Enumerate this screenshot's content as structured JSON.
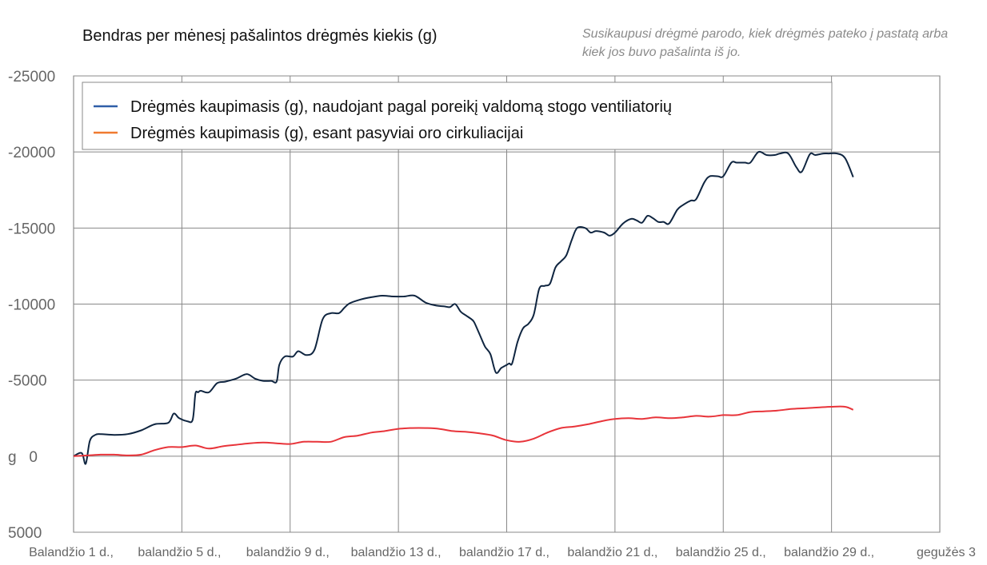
{
  "chart_data": {
    "type": "line",
    "title": "Bendras per mėnesį pašalintos drėgmės kiekis (g)",
    "subtitle": "Susikaupusi drėgmė parodo, kiek drėgmės pateko į pastatą arba kiek jos buvo pašalinta iš jo.",
    "ylim": [
      5000,
      -25000
    ],
    "y_ticks": [
      -25000,
      -20000,
      -15000,
      -10000,
      -5000,
      0,
      5000
    ],
    "y_tick_labels": [
      "-25000",
      "-20000",
      "-15000",
      "-10000",
      "-5000",
      "g   0",
      "5000"
    ],
    "x_ticks": [
      1,
      5,
      9,
      13,
      17,
      21,
      25,
      29,
      33
    ],
    "x_tick_labels": [
      "Balandžio 1 d.,",
      "balandžio 5 d.,",
      "balandžio 9 d.,",
      "balandžio 13 d.,",
      "balandžio 17 d.,",
      "balandžio 21 d.,",
      "balandžio 25 d.,",
      "balandžio 29 d.,",
      "gegužės 3"
    ],
    "xlim": [
      1,
      33
    ],
    "grid": true,
    "legend_position": "top-left",
    "series": [
      {
        "name": "Drėgmės kaupimasis (g), naudojant pagal poreikį valdomą stogo ventiliatorių",
        "color": "#0f2540",
        "legend_color": "#2f5ea8",
        "x": [
          1,
          1.3,
          1.45,
          1.6,
          1.8,
          2.0,
          2.5,
          3.0,
          3.5,
          4.0,
          4.5,
          4.7,
          4.9,
          5.2,
          5.4,
          5.5,
          5.6,
          5.7,
          6.0,
          6.3,
          6.6,
          7.0,
          7.4,
          7.7,
          8.0,
          8.3,
          8.5,
          8.6,
          8.8,
          9.1,
          9.3,
          9.6,
          9.9,
          10.2,
          10.5,
          10.8,
          11.0,
          11.2,
          11.6,
          12.0,
          12.4,
          12.8,
          13.2,
          13.6,
          14.0,
          14.4,
          14.7,
          14.9,
          15.1,
          15.3,
          15.5,
          15.7,
          15.8,
          16.0,
          16.2,
          16.4,
          16.6,
          16.8,
          17.0,
          17.1,
          17.2,
          17.4,
          17.6,
          17.8,
          18.0,
          18.2,
          18.4,
          18.6,
          18.8,
          19.0,
          19.2,
          19.4,
          19.6,
          19.9,
          20.1,
          20.3,
          20.6,
          20.8,
          21.0,
          21.3,
          21.6,
          21.8,
          22.0,
          22.2,
          22.4,
          22.6,
          22.8,
          23.0,
          23.3,
          23.5,
          23.8,
          24.0,
          24.3,
          24.5,
          24.8,
          25.0,
          25.3,
          25.5,
          25.8,
          26.0,
          26.3,
          26.6,
          26.9,
          27.1,
          27.4,
          27.7,
          27.9,
          28.2,
          28.4,
          28.7,
          28.9,
          29.2,
          29.5,
          29.8
        ],
        "values": [
          0,
          -200,
          500,
          -1000,
          -1400,
          -1450,
          -1400,
          -1450,
          -1700,
          -2100,
          -2200,
          -2800,
          -2500,
          -2300,
          -2400,
          -4100,
          -4200,
          -4300,
          -4200,
          -4800,
          -4900,
          -5100,
          -5400,
          -5100,
          -4950,
          -4950,
          -4900,
          -6000,
          -6550,
          -6550,
          -6900,
          -6650,
          -7000,
          -9000,
          -9400,
          -9400,
          -9750,
          -10050,
          -10300,
          -10450,
          -10550,
          -10500,
          -10500,
          -10550,
          -10100,
          -9900,
          -9850,
          -9800,
          -10000,
          -9500,
          -9250,
          -9000,
          -8800,
          -8000,
          -7200,
          -6700,
          -5500,
          -5800,
          -6000,
          -6100,
          -6100,
          -7500,
          -8400,
          -8700,
          -9300,
          -11000,
          -11200,
          -11350,
          -12400,
          -12800,
          -13200,
          -14200,
          -15000,
          -15000,
          -14700,
          -14800,
          -14700,
          -14500,
          -14700,
          -15300,
          -15600,
          -15500,
          -15350,
          -15800,
          -15650,
          -15400,
          -15400,
          -15300,
          -16200,
          -16500,
          -16800,
          -16900,
          -18000,
          -18400,
          -18400,
          -18400,
          -19300,
          -19300,
          -19300,
          -19300,
          -20000,
          -19800,
          -19800,
          -19900,
          -19900,
          -19000,
          -18700,
          -19850,
          -19800,
          -19900,
          -19900,
          -19900,
          -19600,
          -18350
        ]
      },
      {
        "name": "Drėgmės kaupimasis (g), esant pasyviai oro cirkuliacijai",
        "color": "#e8343a",
        "legend_color": "#f07a30",
        "x": [
          1,
          1.5,
          2.0,
          2.5,
          3.0,
          3.5,
          4.0,
          4.5,
          5.0,
          5.5,
          6.0,
          6.5,
          7.0,
          7.5,
          8.0,
          8.5,
          9.0,
          9.5,
          10.0,
          10.5,
          11.0,
          11.5,
          12.0,
          12.5,
          13.0,
          13.5,
          14.0,
          14.5,
          15.0,
          15.5,
          16.0,
          16.5,
          17.0,
          17.5,
          18.0,
          18.5,
          19.0,
          19.5,
          20.0,
          20.5,
          21.0,
          21.5,
          22.0,
          22.5,
          23.0,
          23.5,
          24.0,
          24.5,
          25.0,
          25.5,
          26.0,
          26.5,
          27.0,
          27.5,
          28.0,
          28.5,
          29.0,
          29.5,
          29.8
        ],
        "values": [
          0,
          -50,
          -100,
          -100,
          -50,
          -100,
          -400,
          -600,
          -600,
          -700,
          -500,
          -650,
          -750,
          -850,
          -900,
          -850,
          -800,
          -950,
          -950,
          -950,
          -1250,
          -1350,
          -1550,
          -1650,
          -1800,
          -1850,
          -1850,
          -1800,
          -1650,
          -1600,
          -1500,
          -1350,
          -1050,
          -950,
          -1150,
          -1550,
          -1850,
          -1950,
          -2100,
          -2300,
          -2450,
          -2500,
          -2450,
          -2550,
          -2500,
          -2550,
          -2650,
          -2600,
          -2700,
          -2700,
          -2900,
          -2950,
          -3000,
          -3100,
          -3150,
          -3200,
          -3250,
          -3250,
          -3050
        ]
      }
    ]
  }
}
